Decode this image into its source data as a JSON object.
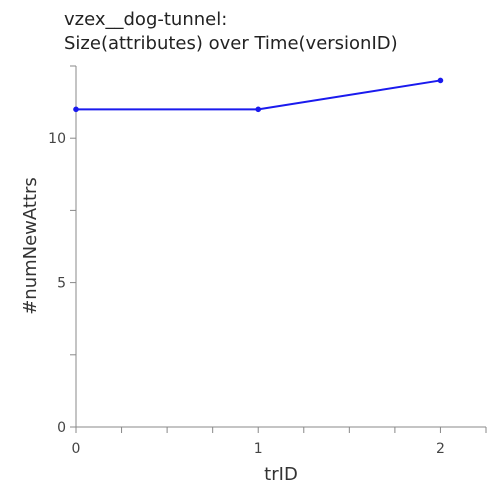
{
  "chart_data": {
    "type": "line",
    "title_line1": "vzex__dog-tunnel:",
    "title_line2": "Size(attributes) over Time(versionID)",
    "xlabel": "trID",
    "ylabel": "#numNewAttrs",
    "x": [
      0,
      1,
      2
    ],
    "series": [
      {
        "values": [
          11,
          11,
          12
        ]
      }
    ],
    "xlim": [
      0,
      2.25
    ],
    "ylim": [
      0,
      12.5
    ],
    "x_ticks": [
      0,
      1,
      2
    ],
    "y_ticks": [
      0,
      5,
      10
    ],
    "grid": false,
    "colors": {
      "line": "#1a1aee",
      "axis": "#888888"
    }
  }
}
